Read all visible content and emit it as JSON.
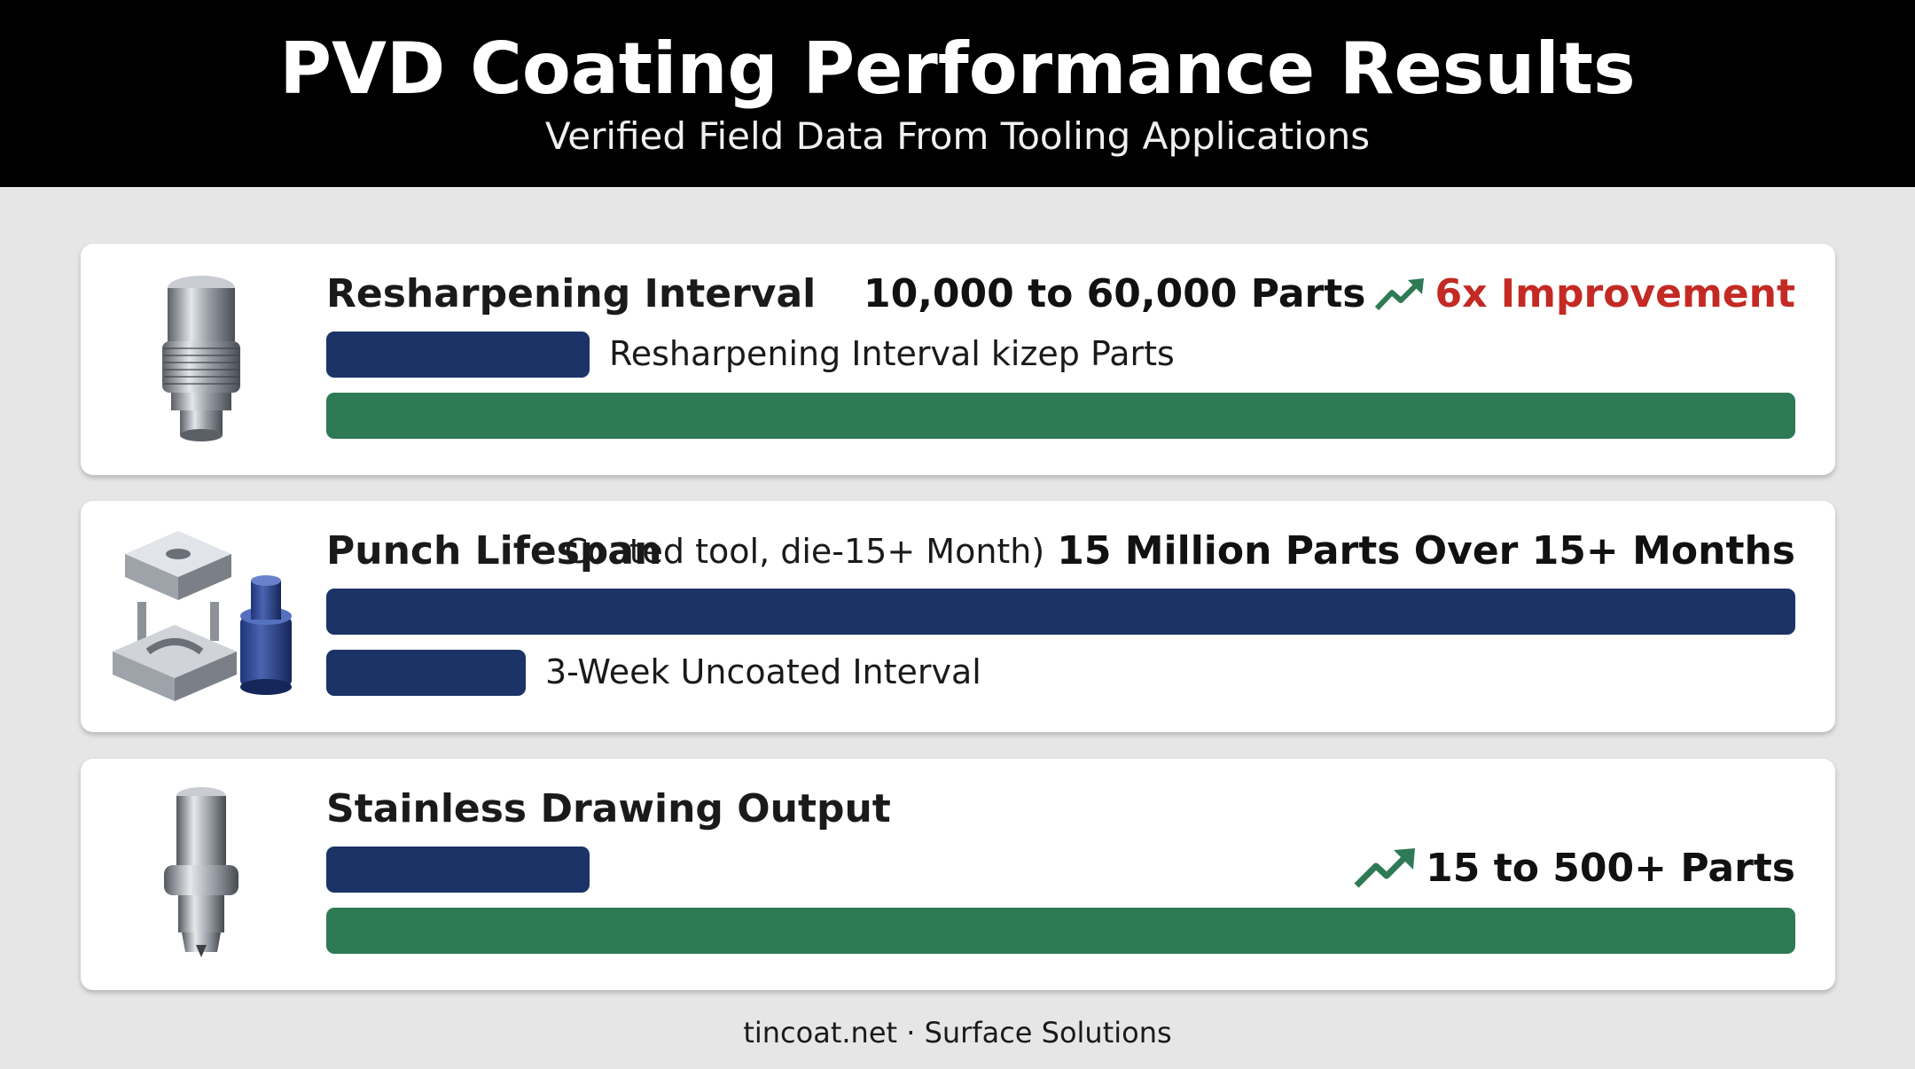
{
  "header": {
    "title": "PVD Coating Performance Results",
    "subtitle": "Verified Field Data From Tooling Applications"
  },
  "colors": {
    "navy_bar": "#1b3366",
    "green_bar": "#2e7a55",
    "improvement_red": "#c42a24",
    "header_bg": "#000000"
  },
  "chart_data": [
    {
      "type": "bar",
      "title": "Resharpening Interval",
      "summary": "10,000 to 60,000 Parts",
      "improvement": "6x Improvement",
      "icon": "punch-tool-icon",
      "bars": [
        {
          "label": "Resharpening Interval kizep Parts",
          "value": 10000,
          "color": "navy"
        },
        {
          "label": "",
          "value": 60000,
          "color": "green"
        }
      ],
      "max": 60000
    },
    {
      "type": "bar",
      "title": "Punch Lifespan",
      "note": "Coated tool, die-15+ Month)",
      "summary": "15 Million Parts Over 15+ Months",
      "icon": "die-set-icon",
      "bars": [
        {
          "label": "",
          "value": 65,
          "color": "navy"
        },
        {
          "label": "3-Week Uncoated Interval",
          "value": 3,
          "color": "navy"
        }
      ],
      "max": 65
    },
    {
      "type": "bar",
      "title": "Stainless Drawing Output",
      "summary": "15 to 500+ Parts",
      "icon": "drawing-punch-icon",
      "bars": [
        {
          "label": "",
          "value": 15,
          "color": "navy"
        },
        {
          "label": "",
          "value": 500,
          "color": "green"
        }
      ],
      "max": 500
    }
  ],
  "footer": "tincoat.net · Surface Solutions"
}
